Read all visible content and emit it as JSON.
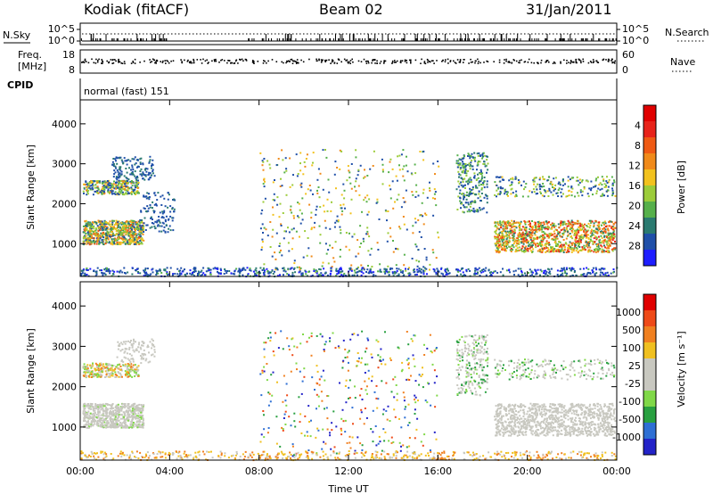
{
  "header": {
    "station": "Kodiak (fitACF)",
    "beam": "Beam 02",
    "date": "31/Jan/2011"
  },
  "top_strips": {
    "nsky_label": "N.Sky",
    "nsky_ticks": [
      "10^5",
      "10^0"
    ],
    "nsearch_label": "N.Search",
    "nsearch_ticks": [
      "10^5",
      "10^0"
    ],
    "freq_label_1": "Freq.",
    "freq_label_2": "[MHz]",
    "freq_ticks": [
      "18",
      "8"
    ],
    "nave_label": "Nave",
    "nave_ticks": [
      "60",
      "0"
    ],
    "cpid_label": "CPID",
    "cpid_value": "normal (fast) 151"
  },
  "chart_data": [
    {
      "type": "heatmap",
      "name": "power-panel",
      "ylabel": "Slant Range [km]",
      "yticks": [
        "1000",
        "2000",
        "3000",
        "4000"
      ],
      "ylim": [
        180,
        4600
      ],
      "xlim": [
        0,
        24
      ],
      "xticks": [
        "00:00",
        "04:00",
        "08:00",
        "12:00",
        "16:00",
        "20:00",
        "00:00"
      ],
      "colorbar": {
        "label": "Power [dB]",
        "ticks": [
          "4",
          "8",
          "12",
          "16",
          "20",
          "24",
          "28"
        ],
        "colors": [
          "#1e1eff",
          "#1f4fa8",
          "#2a7a70",
          "#56b04b",
          "#9ccc3a",
          "#f2c21e",
          "#f08a1a",
          "#ef5a14",
          "#e8231a",
          "#e00000"
        ]
      }
    },
    {
      "type": "heatmap",
      "name": "velocity-panel",
      "ylabel": "Slant Range [km]",
      "yticks": [
        "1000",
        "2000",
        "3000",
        "4000"
      ],
      "ylim": [
        180,
        4600
      ],
      "xlim": [
        0,
        24
      ],
      "xticks": [
        "00:00",
        "04:00",
        "08:00",
        "12:00",
        "16:00",
        "20:00",
        "00:00"
      ],
      "xlabel": "Time UT",
      "colorbar": {
        "label": "Velocity [m s⁻¹]",
        "ticks": [
          "1000",
          "500",
          "100",
          "25",
          "-25",
          "-100",
          "-500",
          "-1000"
        ],
        "colors": [
          "#2323c8",
          "#2e6fd4",
          "#28a040",
          "#80d848",
          "#c8c8c0",
          "#c8c8c0",
          "#f0c020",
          "#f08020",
          "#ee4a18",
          "#e00000"
        ]
      }
    }
  ]
}
